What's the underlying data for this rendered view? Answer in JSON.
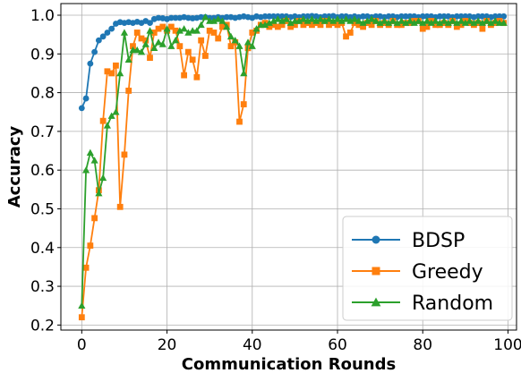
{
  "chart_data": {
    "type": "line",
    "title": "",
    "xlabel": "Communication Rounds",
    "ylabel": "Accuracy",
    "xlim": [
      -4.9,
      102
    ],
    "ylim": [
      0.187,
      1.03
    ],
    "xticks": [
      0,
      20,
      40,
      60,
      80,
      100
    ],
    "yticks": [
      0.2,
      0.3,
      0.4,
      0.5,
      0.6,
      0.7,
      0.8,
      0.9,
      1.0
    ],
    "xtick_labels": [
      "0",
      "20",
      "40",
      "60",
      "80",
      "100"
    ],
    "ytick_labels": [
      "0.2",
      "0.3",
      "0.4",
      "0.5",
      "0.6",
      "0.7",
      "0.8",
      "0.9",
      "1.0"
    ],
    "grid": true,
    "legend_position": "lower right",
    "x": [
      0,
      1,
      2,
      3,
      4,
      5,
      6,
      7,
      8,
      9,
      10,
      11,
      12,
      13,
      14,
      15,
      16,
      17,
      18,
      19,
      20,
      21,
      22,
      23,
      24,
      25,
      26,
      27,
      28,
      29,
      30,
      31,
      32,
      33,
      34,
      35,
      36,
      37,
      38,
      39,
      40,
      41,
      42,
      43,
      44,
      45,
      46,
      47,
      48,
      49,
      50,
      51,
      52,
      53,
      54,
      55,
      56,
      57,
      58,
      59,
      60,
      61,
      62,
      63,
      64,
      65,
      66,
      67,
      68,
      69,
      70,
      71,
      72,
      73,
      74,
      75,
      76,
      77,
      78,
      79,
      80,
      81,
      82,
      83,
      84,
      85,
      86,
      87,
      88,
      89,
      90,
      91,
      92,
      93,
      94,
      95,
      96,
      97,
      98,
      99
    ],
    "series": [
      {
        "name": "BDSP",
        "color": "#1f77b4",
        "marker": "circle",
        "values": [
          0.76,
          0.785,
          0.875,
          0.905,
          0.935,
          0.945,
          0.955,
          0.965,
          0.978,
          0.982,
          0.98,
          0.982,
          0.98,
          0.983,
          0.98,
          0.985,
          0.98,
          0.99,
          0.993,
          0.992,
          0.99,
          0.993,
          0.993,
          0.993,
          0.995,
          0.993,
          0.992,
          0.993,
          0.995,
          0.995,
          0.993,
          0.993,
          0.995,
          0.993,
          0.995,
          0.995,
          0.993,
          0.995,
          0.997,
          0.995,
          0.993,
          0.997,
          0.995,
          0.997,
          0.997,
          0.997,
          0.997,
          0.997,
          0.997,
          0.995,
          0.997,
          0.995,
          0.997,
          0.997,
          0.998,
          0.997,
          0.995,
          0.997,
          0.997,
          0.998,
          0.995,
          0.997,
          0.997,
          0.995,
          0.997,
          0.995,
          0.997,
          0.997,
          0.995,
          0.997,
          0.997,
          0.995,
          0.997,
          0.997,
          0.995,
          0.997,
          0.997,
          0.997,
          0.997,
          0.995,
          0.997,
          0.997,
          0.997,
          0.995,
          0.997,
          0.997,
          0.997,
          0.995,
          0.997,
          0.997,
          0.997,
          0.997,
          0.995,
          0.997,
          0.997,
          0.997,
          0.995,
          0.997,
          0.997,
          0.997
        ]
      },
      {
        "name": "Greedy",
        "color": "#ff7f0e",
        "marker": "square",
        "values": [
          0.22,
          0.348,
          0.405,
          0.476,
          0.548,
          0.727,
          0.855,
          0.85,
          0.87,
          0.505,
          0.64,
          0.805,
          0.92,
          0.955,
          0.94,
          0.935,
          0.89,
          0.955,
          0.965,
          0.97,
          0.96,
          0.97,
          0.96,
          0.92,
          0.845,
          0.905,
          0.885,
          0.84,
          0.935,
          0.895,
          0.96,
          0.955,
          0.94,
          0.97,
          0.975,
          0.92,
          0.93,
          0.725,
          0.77,
          0.915,
          0.955,
          0.96,
          0.975,
          0.98,
          0.97,
          0.975,
          0.97,
          0.975,
          0.985,
          0.97,
          0.975,
          0.985,
          0.975,
          0.98,
          0.975,
          0.98,
          0.975,
          0.985,
          0.975,
          0.98,
          0.975,
          0.98,
          0.945,
          0.955,
          0.98,
          0.975,
          0.97,
          0.98,
          0.975,
          0.985,
          0.975,
          0.98,
          0.975,
          0.985,
          0.975,
          0.975,
          0.98,
          0.98,
          0.985,
          0.985,
          0.965,
          0.97,
          0.985,
          0.975,
          0.975,
          0.98,
          0.975,
          0.985,
          0.97,
          0.975,
          0.985,
          0.98,
          0.975,
          0.98,
          0.965,
          0.985,
          0.975,
          0.98,
          0.985,
          0.98
        ]
      },
      {
        "name": "Random",
        "color": "#2ca02c",
        "marker": "triangle",
        "values": [
          0.25,
          0.6,
          0.645,
          0.625,
          0.54,
          0.58,
          0.715,
          0.74,
          0.75,
          0.85,
          0.955,
          0.885,
          0.91,
          0.91,
          0.905,
          0.925,
          0.96,
          0.915,
          0.93,
          0.925,
          0.965,
          0.92,
          0.935,
          0.96,
          0.965,
          0.955,
          0.96,
          0.96,
          0.975,
          0.995,
          0.985,
          0.985,
          0.99,
          0.985,
          0.97,
          0.945,
          0.935,
          0.92,
          0.85,
          0.93,
          0.92,
          0.965,
          0.975,
          0.975,
          0.98,
          0.985,
          0.99,
          0.985,
          0.99,
          0.98,
          0.985,
          0.985,
          0.99,
          0.985,
          0.99,
          0.985,
          0.99,
          0.985,
          0.99,
          0.985,
          0.99,
          0.985,
          0.99,
          0.985,
          0.99,
          0.985,
          0.98,
          0.985,
          0.99,
          0.985,
          0.98,
          0.985,
          0.98,
          0.985,
          0.98,
          0.985,
          0.98,
          0.985,
          0.98,
          0.985,
          0.98,
          0.985,
          0.98,
          0.985,
          0.98,
          0.985,
          0.98,
          0.985,
          0.98,
          0.985,
          0.98,
          0.985,
          0.98,
          0.985,
          0.98,
          0.985,
          0.98,
          0.985,
          0.98,
          0.98
        ]
      }
    ]
  }
}
